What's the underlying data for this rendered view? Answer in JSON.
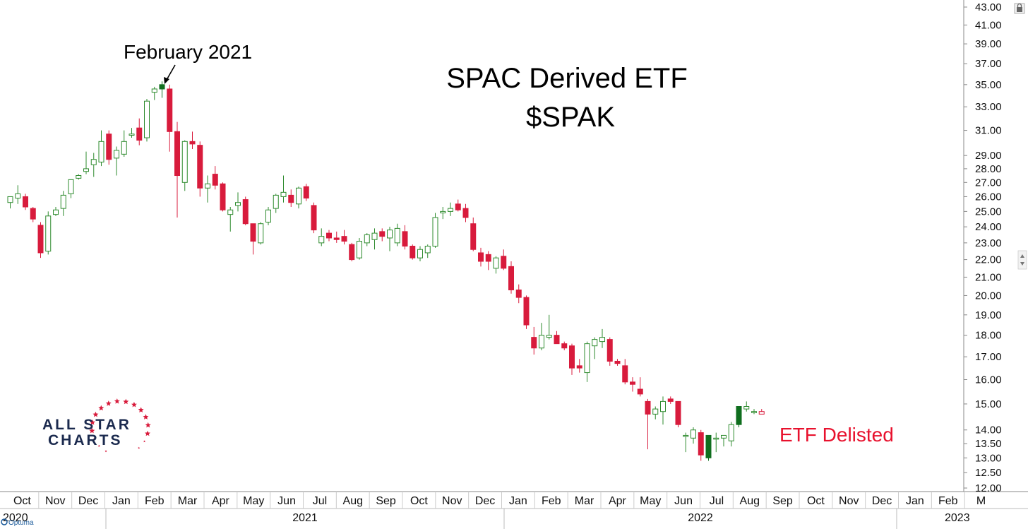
{
  "chart_data": {
    "type": "candlestick",
    "title": "SPAC Derived ETF",
    "subtitle": "$SPAK",
    "annotations": {
      "peak_label": "February 2021",
      "delisted_label": "ETF Delisted"
    },
    "y_axis": {
      "scale": "log",
      "ylim": [
        12.0,
        43.0
      ],
      "ticks": [
        "43.00",
        "41.00",
        "39.00",
        "37.00",
        "35.00",
        "33.00",
        "31.00",
        "29.00",
        "28.00",
        "27.00",
        "26.00",
        "25.00",
        "24.00",
        "23.00",
        "22.00",
        "21.00",
        "20.00",
        "19.00",
        "18.00",
        "17.00",
        "16.00",
        "15.00",
        "14.00",
        "13.50",
        "13.00",
        "12.50",
        "12.00"
      ]
    },
    "x_axis": {
      "months": [
        "Oct",
        "Nov",
        "Dec",
        "Jan",
        "Feb",
        "Mar",
        "Apr",
        "May",
        "Jun",
        "Jul",
        "Aug",
        "Sep",
        "Oct",
        "Nov",
        "Dec",
        "Jan",
        "Feb",
        "Mar",
        "Apr",
        "May",
        "Jun",
        "Jul",
        "Aug",
        "Sep",
        "Oct",
        "Nov",
        "Dec",
        "Jan",
        "Feb",
        "M"
      ],
      "years": [
        "2020",
        "2021",
        "2022",
        "2023"
      ]
    },
    "colors": {
      "up": "#2e8b2e",
      "down": "#d81b3c",
      "up_strong": "#0f6e1e",
      "delisted": "#e8112d"
    },
    "candles": [
      {
        "o": 25.6,
        "h": 26.0,
        "l": 25.2,
        "c": 26.0
      },
      {
        "o": 25.9,
        "h": 26.8,
        "l": 25.5,
        "c": 26.2
      },
      {
        "o": 26.0,
        "h": 26.2,
        "l": 25.1,
        "c": 25.3
      },
      {
        "o": 25.2,
        "h": 25.3,
        "l": 24.3,
        "c": 24.5
      },
      {
        "o": 24.1,
        "h": 24.3,
        "l": 22.1,
        "c": 22.4
      },
      {
        "o": 22.5,
        "h": 25.0,
        "l": 22.3,
        "c": 24.7
      },
      {
        "o": 24.8,
        "h": 25.3,
        "l": 24.7,
        "c": 25.1
      },
      {
        "o": 25.2,
        "h": 26.4,
        "l": 24.7,
        "c": 26.1
      },
      {
        "o": 26.2,
        "h": 27.2,
        "l": 25.9,
        "c": 27.2
      },
      {
        "o": 27.3,
        "h": 27.6,
        "l": 27.2,
        "c": 27.5
      },
      {
        "o": 27.8,
        "h": 29.3,
        "l": 27.6,
        "c": 28.0
      },
      {
        "o": 28.3,
        "h": 29.2,
        "l": 27.4,
        "c": 28.7
      },
      {
        "o": 28.5,
        "h": 31.0,
        "l": 28.2,
        "c": 30.1
      },
      {
        "o": 30.7,
        "h": 31.0,
        "l": 28.3,
        "c": 28.7
      },
      {
        "o": 28.8,
        "h": 29.7,
        "l": 27.5,
        "c": 29.4
      },
      {
        "o": 29.1,
        "h": 31.0,
        "l": 28.9,
        "c": 30.1
      },
      {
        "o": 30.6,
        "h": 31.2,
        "l": 30.4,
        "c": 30.7
      },
      {
        "o": 31.2,
        "h": 32.0,
        "l": 29.8,
        "c": 30.2
      },
      {
        "o": 30.4,
        "h": 33.7,
        "l": 30.1,
        "c": 33.5
      },
      {
        "o": 34.3,
        "h": 34.8,
        "l": 33.6,
        "c": 34.6
      },
      {
        "o": 34.6,
        "h": 35.3,
        "l": 33.8,
        "c": 35.0
      },
      {
        "o": 34.6,
        "h": 35.0,
        "l": 29.3,
        "c": 30.9
      },
      {
        "o": 30.9,
        "h": 31.7,
        "l": 24.6,
        "c": 27.5
      },
      {
        "o": 27.0,
        "h": 30.2,
        "l": 26.4,
        "c": 30.1
      },
      {
        "o": 30.1,
        "h": 30.9,
        "l": 29.5,
        "c": 29.9
      },
      {
        "o": 29.8,
        "h": 30.1,
        "l": 26.0,
        "c": 26.6
      },
      {
        "o": 26.6,
        "h": 27.5,
        "l": 25.6,
        "c": 26.9
      },
      {
        "o": 27.6,
        "h": 28.2,
        "l": 26.5,
        "c": 26.8
      },
      {
        "o": 26.9,
        "h": 27.0,
        "l": 25.0,
        "c": 25.1
      },
      {
        "o": 24.8,
        "h": 25.3,
        "l": 23.7,
        "c": 25.1
      },
      {
        "o": 25.4,
        "h": 26.3,
        "l": 25.0,
        "c": 25.6
      },
      {
        "o": 25.8,
        "h": 26.0,
        "l": 24.1,
        "c": 24.2
      },
      {
        "o": 24.2,
        "h": 24.2,
        "l": 22.3,
        "c": 23.1
      },
      {
        "o": 23.0,
        "h": 24.3,
        "l": 22.9,
        "c": 24.2
      },
      {
        "o": 24.3,
        "h": 25.3,
        "l": 24.1,
        "c": 25.1
      },
      {
        "o": 25.2,
        "h": 26.2,
        "l": 24.9,
        "c": 26.1
      },
      {
        "o": 26.0,
        "h": 27.5,
        "l": 25.6,
        "c": 26.3
      },
      {
        "o": 26.1,
        "h": 26.5,
        "l": 25.3,
        "c": 25.6
      },
      {
        "o": 25.5,
        "h": 26.7,
        "l": 25.2,
        "c": 26.6
      },
      {
        "o": 26.7,
        "h": 26.9,
        "l": 25.7,
        "c": 25.9
      },
      {
        "o": 25.4,
        "h": 25.6,
        "l": 23.6,
        "c": 23.8
      },
      {
        "o": 23.0,
        "h": 23.9,
        "l": 22.8,
        "c": 23.4
      },
      {
        "o": 23.6,
        "h": 23.8,
        "l": 23.1,
        "c": 23.3
      },
      {
        "o": 23.3,
        "h": 23.7,
        "l": 23.0,
        "c": 23.2
      },
      {
        "o": 23.4,
        "h": 23.8,
        "l": 22.9,
        "c": 23.1
      },
      {
        "o": 22.9,
        "h": 23.0,
        "l": 21.9,
        "c": 22.0
      },
      {
        "o": 22.1,
        "h": 23.3,
        "l": 22.0,
        "c": 23.1
      },
      {
        "o": 23.0,
        "h": 23.6,
        "l": 22.8,
        "c": 23.5
      },
      {
        "o": 23.2,
        "h": 23.9,
        "l": 22.6,
        "c": 23.6
      },
      {
        "o": 23.7,
        "h": 23.9,
        "l": 23.1,
        "c": 23.4
      },
      {
        "o": 23.3,
        "h": 24.0,
        "l": 22.5,
        "c": 23.8
      },
      {
        "o": 23.0,
        "h": 24.2,
        "l": 22.8,
        "c": 23.9
      },
      {
        "o": 23.7,
        "h": 24.1,
        "l": 22.6,
        "c": 22.8
      },
      {
        "o": 22.8,
        "h": 22.9,
        "l": 22.0,
        "c": 22.1
      },
      {
        "o": 22.1,
        "h": 22.8,
        "l": 21.9,
        "c": 22.6
      },
      {
        "o": 22.4,
        "h": 22.9,
        "l": 22.1,
        "c": 22.8
      },
      {
        "o": 22.8,
        "h": 24.9,
        "l": 22.7,
        "c": 24.6
      },
      {
        "o": 24.9,
        "h": 25.3,
        "l": 24.5,
        "c": 25.0
      },
      {
        "o": 25.0,
        "h": 25.6,
        "l": 24.7,
        "c": 25.2
      },
      {
        "o": 25.5,
        "h": 25.8,
        "l": 25.0,
        "c": 25.1
      },
      {
        "o": 25.2,
        "h": 25.5,
        "l": 24.3,
        "c": 24.6
      },
      {
        "o": 24.2,
        "h": 24.6,
        "l": 22.5,
        "c": 22.6
      },
      {
        "o": 22.4,
        "h": 22.7,
        "l": 21.6,
        "c": 21.9
      },
      {
        "o": 22.3,
        "h": 22.5,
        "l": 21.4,
        "c": 21.9
      },
      {
        "o": 21.5,
        "h": 22.2,
        "l": 21.2,
        "c": 22.1
      },
      {
        "o": 22.2,
        "h": 22.6,
        "l": 21.4,
        "c": 21.5
      },
      {
        "o": 21.6,
        "h": 21.9,
        "l": 20.1,
        "c": 20.3
      },
      {
        "o": 20.3,
        "h": 20.6,
        "l": 19.6,
        "c": 19.9
      },
      {
        "o": 19.9,
        "h": 20.0,
        "l": 18.3,
        "c": 18.5
      },
      {
        "o": 17.9,
        "h": 18.4,
        "l": 17.1,
        "c": 17.4
      },
      {
        "o": 17.4,
        "h": 18.6,
        "l": 17.3,
        "c": 18.0
      },
      {
        "o": 17.9,
        "h": 19.0,
        "l": 17.8,
        "c": 18.0
      },
      {
        "o": 18.0,
        "h": 18.2,
        "l": 17.6,
        "c": 17.6
      },
      {
        "o": 17.6,
        "h": 17.7,
        "l": 17.3,
        "c": 17.4
      },
      {
        "o": 17.5,
        "h": 17.6,
        "l": 16.2,
        "c": 16.5
      },
      {
        "o": 16.6,
        "h": 16.9,
        "l": 16.3,
        "c": 16.5
      },
      {
        "o": 16.3,
        "h": 17.7,
        "l": 15.9,
        "c": 17.6
      },
      {
        "o": 17.5,
        "h": 17.9,
        "l": 16.9,
        "c": 17.8
      },
      {
        "o": 17.7,
        "h": 18.3,
        "l": 17.4,
        "c": 17.9
      },
      {
        "o": 17.8,
        "h": 17.9,
        "l": 16.6,
        "c": 16.8
      },
      {
        "o": 16.8,
        "h": 16.9,
        "l": 16.6,
        "c": 16.7
      },
      {
        "o": 16.6,
        "h": 16.9,
        "l": 15.8,
        "c": 15.9
      },
      {
        "o": 15.9,
        "h": 16.1,
        "l": 15.5,
        "c": 15.8
      },
      {
        "o": 15.6,
        "h": 16.1,
        "l": 15.3,
        "c": 15.4
      },
      {
        "o": 15.1,
        "h": 15.2,
        "l": 13.3,
        "c": 14.6
      },
      {
        "o": 14.6,
        "h": 14.9,
        "l": 14.4,
        "c": 14.8
      },
      {
        "o": 14.7,
        "h": 15.3,
        "l": 14.2,
        "c": 15.1
      },
      {
        "o": 15.2,
        "h": 15.3,
        "l": 15.0,
        "c": 15.1
      },
      {
        "o": 15.1,
        "h": 15.1,
        "l": 14.1,
        "c": 14.2
      },
      {
        "o": 13.8,
        "h": 13.9,
        "l": 13.2,
        "c": 13.8
      },
      {
        "o": 13.7,
        "h": 14.1,
        "l": 13.5,
        "c": 14.0
      },
      {
        "o": 13.9,
        "h": 14.0,
        "l": 12.9,
        "c": 13.1
      },
      {
        "o": 13.0,
        "h": 13.8,
        "l": 12.9,
        "c": 13.8
      },
      {
        "o": 13.7,
        "h": 13.9,
        "l": 13.2,
        "c": 13.7
      },
      {
        "o": 13.7,
        "h": 13.8,
        "l": 13.4,
        "c": 13.8
      },
      {
        "o": 13.6,
        "h": 14.3,
        "l": 13.4,
        "c": 14.2
      },
      {
        "o": 14.2,
        "h": 14.8,
        "l": 14.1,
        "c": 14.9
      },
      {
        "o": 14.8,
        "h": 15.1,
        "l": 14.7,
        "c": 14.9
      },
      {
        "o": 14.7,
        "h": 14.8,
        "l": 14.6,
        "c": 14.7
      },
      {
        "o": 14.7,
        "h": 14.8,
        "l": 14.6,
        "c": 14.6
      }
    ]
  },
  "logo": {
    "line1": "ALL STAR",
    "line2": "CHARTS"
  },
  "branding": {
    "footer": "Optuma"
  }
}
